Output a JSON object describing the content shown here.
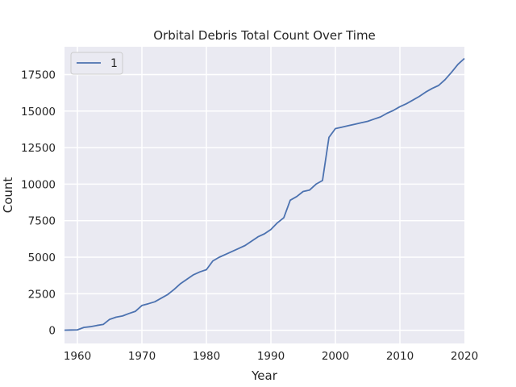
{
  "chart_data": {
    "type": "line",
    "title": "Orbital Debris Total Count Over Time",
    "xlabel": "Year",
    "ylabel": "Count",
    "xlim": [
      1958,
      2020
    ],
    "ylim": [
      -900,
      19400
    ],
    "xticks": [
      1960,
      1970,
      1980,
      1990,
      2000,
      2010,
      2020
    ],
    "yticks": [
      0,
      2500,
      5000,
      7500,
      10000,
      12500,
      15000,
      17500
    ],
    "grid": true,
    "legend": {
      "position": "top-left"
    },
    "colors": {
      "background": "#eaeaf2",
      "grid": "#ffffff",
      "line": "#4c72b0"
    },
    "series": [
      {
        "name": "1",
        "x": [
          1958,
          1959,
          1960,
          1961,
          1962,
          1963,
          1964,
          1965,
          1966,
          1967,
          1968,
          1969,
          1970,
          1971,
          1972,
          1973,
          1974,
          1975,
          1976,
          1977,
          1978,
          1979,
          1980,
          1981,
          1982,
          1983,
          1984,
          1985,
          1986,
          1987,
          1988,
          1989,
          1990,
          1991,
          1992,
          1993,
          1994,
          1995,
          1996,
          1997,
          1998,
          1999,
          2000,
          2001,
          2002,
          2003,
          2004,
          2005,
          2006,
          2007,
          2008,
          2009,
          2010,
          2011,
          2012,
          2013,
          2014,
          2015,
          2016,
          2017,
          2018,
          2019,
          2020
        ],
        "values": [
          10,
          20,
          30,
          200,
          250,
          330,
          400,
          750,
          900,
          980,
          1150,
          1300,
          1700,
          1820,
          1950,
          2200,
          2450,
          2800,
          3200,
          3500,
          3800,
          4000,
          4150,
          4750,
          5000,
          5200,
          5400,
          5600,
          5800,
          6100,
          6400,
          6600,
          6900,
          7350,
          7700,
          8900,
          9150,
          9500,
          9600,
          10000,
          10250,
          13200,
          13800,
          13900,
          14000,
          14100,
          14200,
          14300,
          14450,
          14600,
          14850,
          15050,
          15300,
          15500,
          15750,
          16000,
          16300,
          16550,
          16750,
          17150,
          17650,
          18200,
          18600
        ]
      }
    ]
  }
}
